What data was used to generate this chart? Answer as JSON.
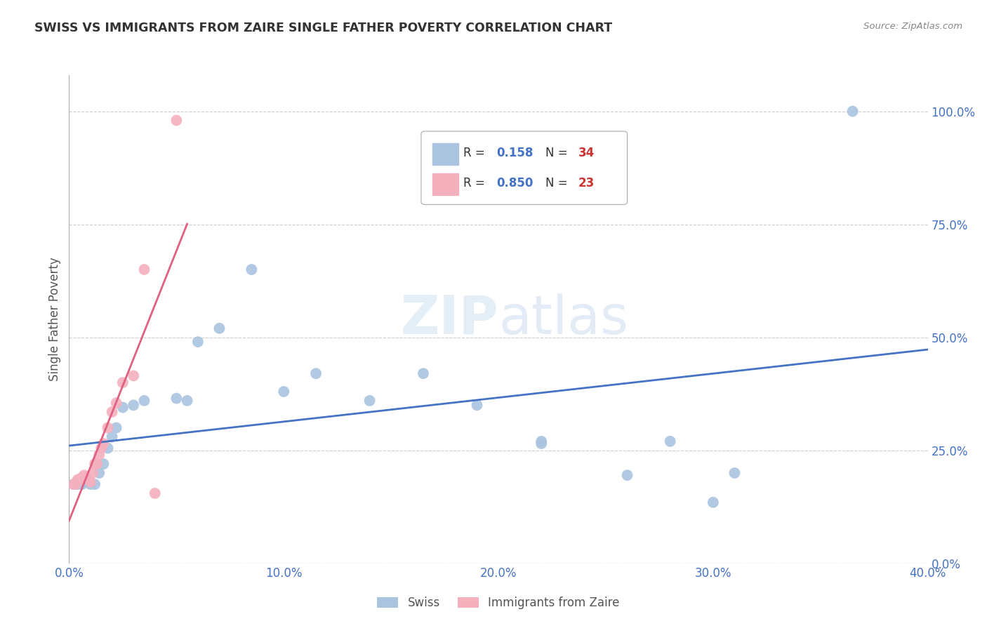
{
  "title": "SWISS VS IMMIGRANTS FROM ZAIRE SINGLE FATHER POVERTY CORRELATION CHART",
  "source": "Source: ZipAtlas.com",
  "xlabel_ticks": [
    "0.0%",
    "",
    "10.0%",
    "",
    "20.0%",
    "",
    "30.0%",
    "",
    "40.0%"
  ],
  "xlabel_vals": [
    0.0,
    0.05,
    0.1,
    0.15,
    0.2,
    0.25,
    0.3,
    0.35,
    0.4
  ],
  "ylabel_ticks": [
    "100.0%",
    "75.0%",
    "50.0%",
    "25.0%",
    "0.0%"
  ],
  "ylabel_vals": [
    1.0,
    0.75,
    0.5,
    0.25,
    0.0
  ],
  "ylabel_label": "Single Father Poverty",
  "xlim": [
    0.0,
    0.4
  ],
  "ylim": [
    0.0,
    1.08
  ],
  "swiss_x": [
    0.002,
    0.003,
    0.004,
    0.005,
    0.006,
    0.007,
    0.008,
    0.01,
    0.012,
    0.014,
    0.016,
    0.018,
    0.02,
    0.022,
    0.025,
    0.03,
    0.035,
    0.05,
    0.055,
    0.06,
    0.07,
    0.085,
    0.1,
    0.115,
    0.14,
    0.165,
    0.19,
    0.22,
    0.26,
    0.3,
    0.22,
    0.28,
    0.31,
    0.365
  ],
  "swiss_y": [
    0.175,
    0.175,
    0.175,
    0.185,
    0.175,
    0.19,
    0.18,
    0.175,
    0.175,
    0.2,
    0.22,
    0.255,
    0.28,
    0.3,
    0.345,
    0.35,
    0.36,
    0.365,
    0.36,
    0.49,
    0.52,
    0.65,
    0.38,
    0.42,
    0.36,
    0.42,
    0.35,
    0.265,
    0.195,
    0.135,
    0.27,
    0.27,
    0.2,
    1.0
  ],
  "zaire_x": [
    0.002,
    0.003,
    0.004,
    0.005,
    0.006,
    0.007,
    0.008,
    0.009,
    0.01,
    0.011,
    0.012,
    0.013,
    0.014,
    0.015,
    0.016,
    0.018,
    0.02,
    0.022,
    0.025,
    0.03,
    0.035,
    0.04,
    0.05
  ],
  "zaire_y": [
    0.175,
    0.175,
    0.185,
    0.185,
    0.19,
    0.195,
    0.19,
    0.185,
    0.18,
    0.2,
    0.22,
    0.22,
    0.24,
    0.255,
    0.265,
    0.3,
    0.335,
    0.355,
    0.4,
    0.415,
    0.65,
    0.155,
    0.98
  ],
  "swiss_R": 0.158,
  "swiss_N": 34,
  "zaire_R": 0.85,
  "zaire_N": 23,
  "swiss_color": "#aac4e0",
  "zaire_color": "#f5b0be",
  "swiss_line_color": "#4472c4",
  "zaire_line_color": "#e06080",
  "bg_color": "#ffffff",
  "grid_color": "#cccccc",
  "watermark_zip": "ZIP",
  "watermark_atlas": "atlas",
  "legend_r_color": "#4472c4",
  "legend_n_color": "#cc3333",
  "legend_text_color": "#333333"
}
